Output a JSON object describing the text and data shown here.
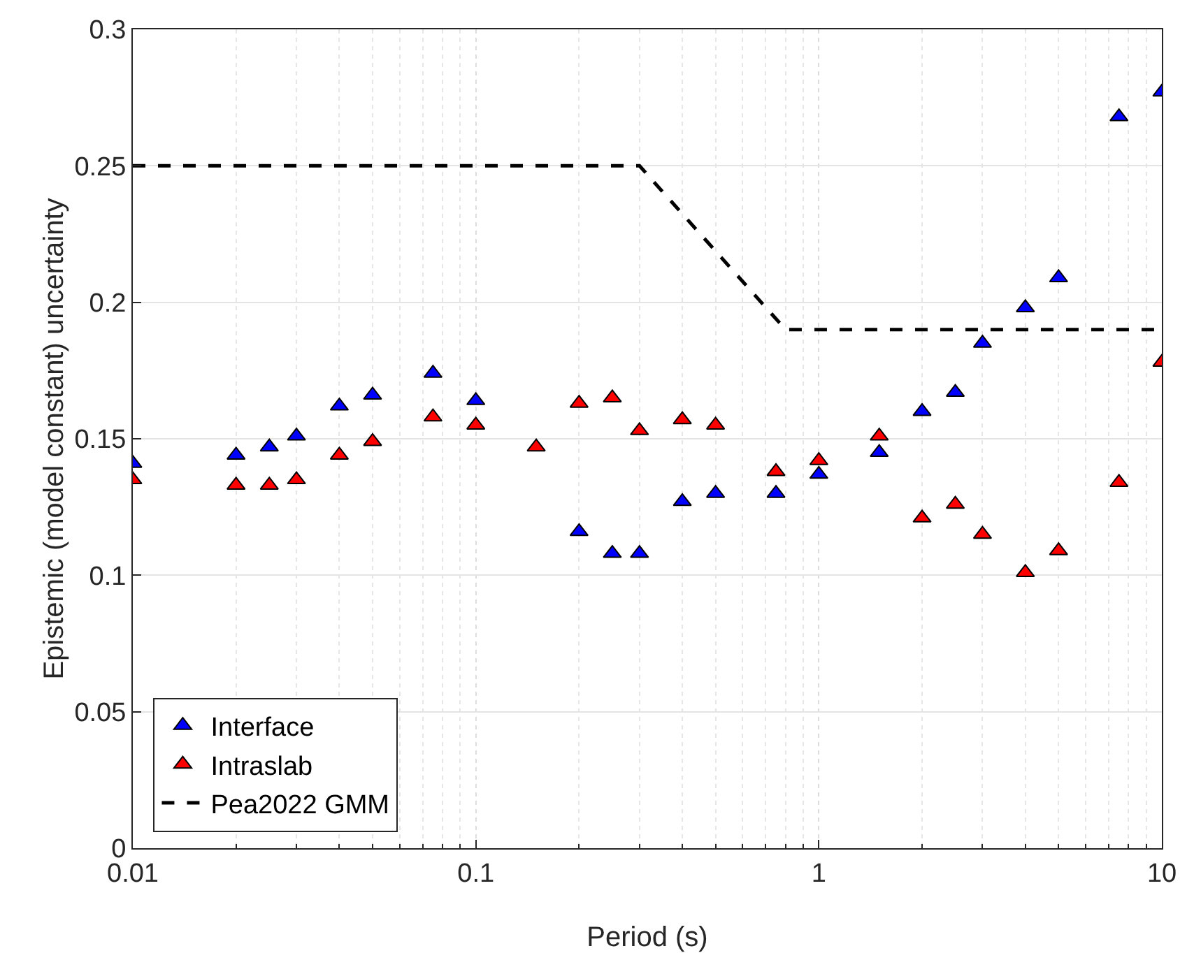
{
  "chart_data": {
    "type": "scatter",
    "xlabel": "Period (s)",
    "ylabel": "Epistemic (model constant) uncertainty",
    "log": "x",
    "grid": true,
    "legend": "bottom left",
    "x": [
      0.01,
      0.02,
      0.025,
      0.03,
      0.04,
      0.05,
      0.075,
      0.1,
      0.15,
      0.2,
      0.25,
      0.3,
      0.4,
      0.5,
      0.75,
      1,
      1.5,
      2,
      2.5,
      3,
      4,
      5,
      7.5,
      10
    ],
    "xlim": [
      0.01,
      10
    ],
    "xticks": [
      0.01,
      0.1,
      1,
      10
    ],
    "ylim": [
      0,
      0.3
    ],
    "yticks": [
      0,
      0.05,
      0.1,
      0.15,
      0.2,
      0.25,
      0.3
    ],
    "series": [
      {
        "name": "Interface",
        "type": "scatter",
        "marker": "triangle",
        "color": "#0000ff",
        "values": [
          0.141,
          0.144,
          0.147,
          0.151,
          0.162,
          0.166,
          0.174,
          0.164,
          null,
          0.116,
          0.108,
          0.108,
          0.127,
          0.13,
          0.13,
          0.137,
          0.145,
          0.16,
          0.167,
          0.185,
          0.198,
          0.209,
          0.268,
          0.277
        ]
      },
      {
        "name": "Intraslab",
        "type": "scatter",
        "marker": "triangle",
        "color": "#ff0000",
        "values": [
          0.135,
          0.133,
          0.133,
          0.135,
          0.144,
          0.149,
          0.158,
          0.155,
          0.147,
          0.163,
          0.165,
          0.153,
          0.157,
          0.155,
          0.138,
          0.142,
          0.151,
          0.121,
          0.126,
          0.115,
          0.101,
          0.109,
          0.134,
          0.178
        ]
      },
      {
        "name": "Pea2022 GMM",
        "type": "line",
        "marker": "none",
        "line_style": "dashed",
        "color": "#000000",
        "x": [
          0.01,
          0.3,
          0.8,
          10
        ],
        "values": [
          0.25,
          0.25,
          0.19,
          0.19
        ]
      }
    ]
  }
}
